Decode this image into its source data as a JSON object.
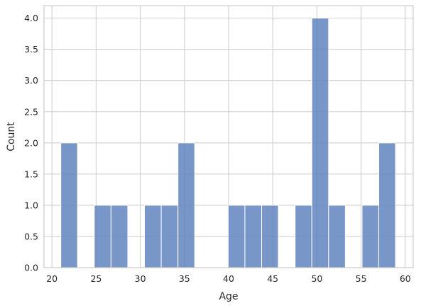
{
  "chart_data": {
    "type": "bar",
    "title": "",
    "xlabel": "Age",
    "ylabel": "Count",
    "xlim": [
      19.1,
      60.9
    ],
    "ylim": [
      0,
      4.2
    ],
    "bin_width": 1.895,
    "x_ticks": [
      20,
      25,
      30,
      35,
      40,
      45,
      50,
      55,
      60
    ],
    "y_ticks": [
      0.0,
      0.5,
      1.0,
      1.5,
      2.0,
      2.5,
      3.0,
      3.5,
      4.0
    ],
    "x_tick_labels": [
      "20",
      "25",
      "30",
      "35",
      "40",
      "45",
      "50",
      "55",
      "60"
    ],
    "y_tick_labels": [
      "0.0",
      "0.5",
      "1.0",
      "1.5",
      "2.0",
      "2.5",
      "3.0",
      "3.5",
      "4.0"
    ],
    "bins": [
      {
        "start": 21.0,
        "count": 2
      },
      {
        "start": 22.895,
        "count": 0
      },
      {
        "start": 24.79,
        "count": 1
      },
      {
        "start": 26.685,
        "count": 1
      },
      {
        "start": 28.58,
        "count": 0
      },
      {
        "start": 30.475,
        "count": 1
      },
      {
        "start": 32.37,
        "count": 1
      },
      {
        "start": 34.265,
        "count": 2
      },
      {
        "start": 36.16,
        "count": 0
      },
      {
        "start": 38.055,
        "count": 0
      },
      {
        "start": 39.95,
        "count": 1
      },
      {
        "start": 41.845,
        "count": 1
      },
      {
        "start": 43.74,
        "count": 1
      },
      {
        "start": 45.635,
        "count": 0
      },
      {
        "start": 47.53,
        "count": 1
      },
      {
        "start": 49.425,
        "count": 4
      },
      {
        "start": 51.32,
        "count": 1
      },
      {
        "start": 53.215,
        "count": 0
      },
      {
        "start": 55.11,
        "count": 1
      },
      {
        "start": 57.005,
        "count": 2
      }
    ],
    "grid": true,
    "colors": {
      "bar_fill": "#5b7fbc",
      "bar_edge": "#ffffff",
      "grid": "#cfcfcf",
      "frame": "#cccccc",
      "text": "#262626"
    }
  }
}
